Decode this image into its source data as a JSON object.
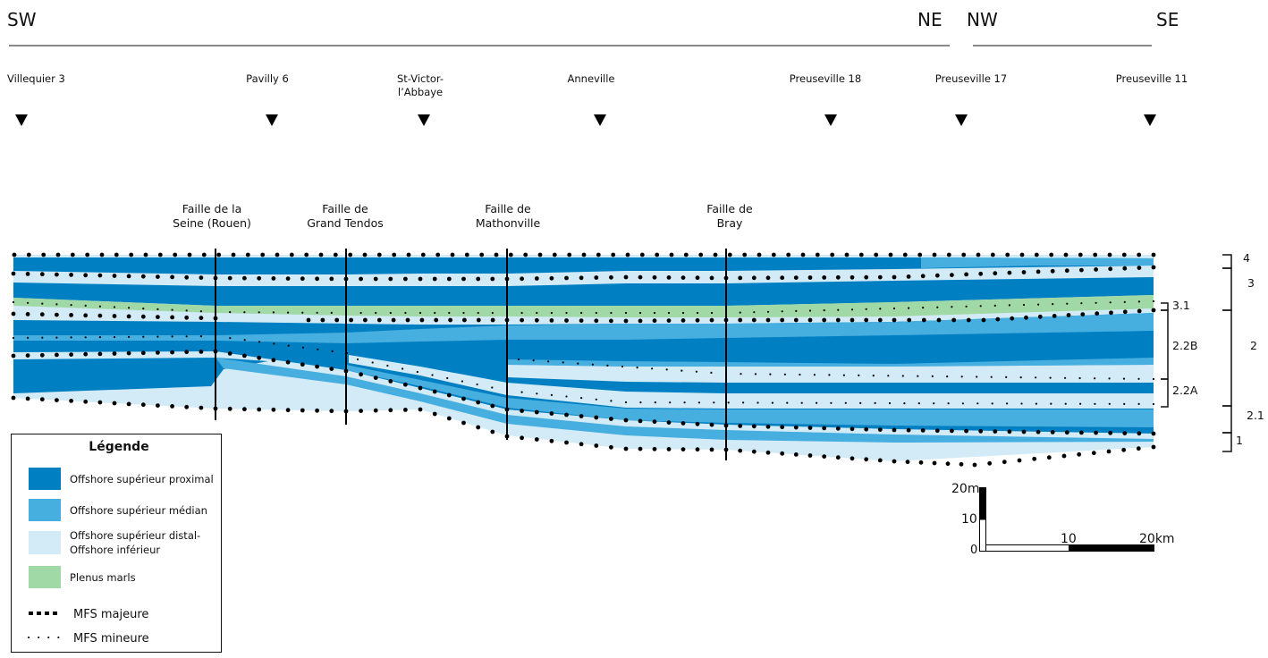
{
  "orientation": {
    "left_start": "SW",
    "left_end": "NE",
    "right_start": "NW",
    "right_end": "SE"
  },
  "wells": [
    {
      "name": "Villequier 3"
    },
    {
      "name": "Pavilly 6"
    },
    {
      "name": "St-Victor-",
      "name2": "l’Abbaye"
    },
    {
      "name": "Anneville"
    },
    {
      "name": "Preuseville 18"
    },
    {
      "name": "Preuseville 17"
    },
    {
      "name": "Preuseville 11"
    }
  ],
  "faults": [
    {
      "line1": "Faille de la",
      "line2": "Seine (Rouen)"
    },
    {
      "line1": "Faille de",
      "line2": "Grand Tendos"
    },
    {
      "line1": "Faille de",
      "line2": "Mathonville"
    },
    {
      "line1": "Faille de",
      "line2": "Bray"
    }
  ],
  "sequences_inner": [
    "3.1",
    "2.2B",
    "2.2A"
  ],
  "sequences_outer": [
    "4",
    "3",
    "2",
    "2.1",
    "1"
  ],
  "legend": {
    "title": "Légende",
    "items": [
      {
        "label": "Offshore supérieur proximal",
        "color": "#0080c3"
      },
      {
        "label": "Offshore supérieur médian",
        "color": "#47aee0"
      },
      {
        "label": "Offshore supérieur  distal-",
        "label2": "Offshore inférieur",
        "color": "#d3ebf7"
      },
      {
        "label": "Plenus marls",
        "color": "#a0d9a6"
      }
    ],
    "mfs_major": "MFS majeure",
    "mfs_minor": "MFS mineure"
  },
  "scale": {
    "vertical_top": "20m",
    "vertical_mid": "10",
    "vertical_zero": "0",
    "horizontal_mid": "10",
    "horizontal_end": "20km"
  },
  "colors": {
    "proximal": "#0080c3",
    "median": "#47aee0",
    "distal": "#d3ebf7",
    "plenus": "#a0d9a6"
  }
}
